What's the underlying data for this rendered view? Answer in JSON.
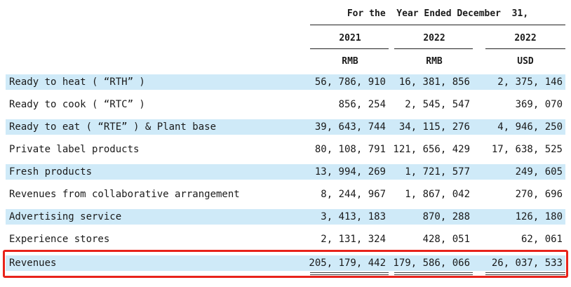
{
  "header": {
    "period": "For the  Year Ended December  31,",
    "years": [
      "2021",
      "2022",
      "2022"
    ],
    "currencies": [
      "RMB",
      "RMB",
      "USD"
    ]
  },
  "rows": [
    {
      "label": "Ready to heat ( “RTH” )",
      "values": [
        "56, 786, 910",
        "16, 381, 856",
        "2, 375, 146"
      ]
    },
    {
      "label": "Ready to cook ( “RTC” )",
      "values": [
        "856, 254",
        "2, 545, 547",
        "369, 070"
      ]
    },
    {
      "label": "Ready to eat ( “RTE” ) & Plant base",
      "values": [
        "39, 643, 744",
        "34, 115, 276",
        "4, 946, 250"
      ]
    },
    {
      "label": "Private label products",
      "values": [
        "80, 108, 791",
        "121, 656, 429",
        "17, 638, 525"
      ]
    },
    {
      "label": "Fresh products",
      "values": [
        "13, 994, 269",
        "1, 721, 577",
        "249, 605"
      ]
    },
    {
      "label": "Revenues from collaborative arrangement",
      "values": [
        "8, 244, 967",
        "1, 867, 042",
        "270, 696"
      ]
    },
    {
      "label": "Advertising service",
      "values": [
        "3, 413, 183",
        "870, 288",
        "126, 180"
      ]
    },
    {
      "label": "Experience stores",
      "values": [
        "2, 131, 324",
        "428, 051",
        "62, 061"
      ]
    }
  ],
  "total": {
    "label": "Revenues",
    "values": [
      "205, 179, 442",
      "179, 586, 066",
      "26, 037, 533"
    ]
  },
  "colors": {
    "shade": "#cfeaf8",
    "highlight_border": "#e8231b"
  }
}
